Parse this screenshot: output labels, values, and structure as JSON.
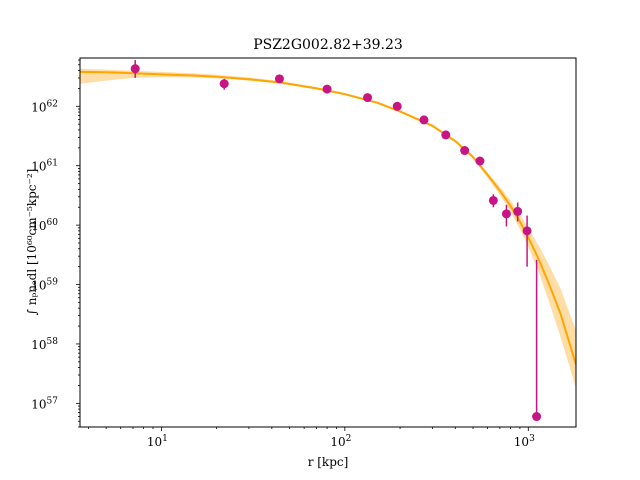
{
  "chart_data": {
    "type": "scatter",
    "title": "PSZ2G002.82+39.23",
    "xlabel": "r [kpc]",
    "ylabel": "∫ nₚnₑdl [10⁶⁰cm⁻⁵kpc⁻²]",
    "xscale": "log",
    "yscale": "log",
    "xlim": [
      3.6,
      1820
    ],
    "ylim": [
      4e+56,
      6.5e+62
    ],
    "x_ticks": [
      {
        "value": 10,
        "label": "10",
        "exp": "1"
      },
      {
        "value": 100,
        "label": "10",
        "exp": "2"
      },
      {
        "value": 1000,
        "label": "10",
        "exp": "3"
      }
    ],
    "y_ticks": [
      {
        "value": 1e+57,
        "label": "10",
        "exp": "57"
      },
      {
        "value": 1e+58,
        "label": "10",
        "exp": "58"
      },
      {
        "value": 1e+59,
        "label": "10",
        "exp": "59"
      },
      {
        "value": 1e+60,
        "label": "10",
        "exp": "60"
      },
      {
        "value": 1e+61,
        "label": "10",
        "exp": "61"
      },
      {
        "value": 1e+62,
        "label": "10",
        "exp": "62"
      }
    ],
    "colors": {
      "data": "#c71585",
      "model": "#ffa500",
      "band": "#ffd28a"
    },
    "series": [
      {
        "kind": "errorbar",
        "x": [
          7.2,
          22,
          44,
          80,
          133,
          193,
          270,
          355,
          450,
          545,
          645,
          760,
          875,
          985,
          1110
        ],
        "y": [
          4.3e+62,
          2.4e+62,
          2.9e+62,
          1.95e+62,
          1.4e+62,
          1e+62,
          5.9e+61,
          3.3e+61,
          1.8e+61,
          1.2e+61,
          2.6e+60,
          1.55e+60,
          1.7e+60,
          8e+59,
          6e+56
        ],
        "yerr_low": [
          3e+62,
          1.9e+62,
          2.6e+62,
          1.8e+62,
          1.3e+62,
          9.3e+61,
          5.5e+61,
          3.1e+61,
          1.7e+61,
          1.13e+61,
          2e+60,
          9.5e+59,
          1.15e+60,
          2e+59,
          6e+56
        ],
        "yerr_high": [
          6e+62,
          2.9e+62,
          3.2e+62,
          2.1e+62,
          1.5e+62,
          1.08e+62,
          6.3e+61,
          3.5e+61,
          1.9e+61,
          1.27e+61,
          3.3e+60,
          2.2e+60,
          2.4e+60,
          1.45e+60,
          2.6e+59
        ]
      },
      {
        "kind": "model",
        "x": [
          3.6,
          5,
          7,
          10,
          15,
          20,
          30,
          45,
          70,
          100,
          150,
          200,
          300,
          400,
          500,
          600,
          700,
          800,
          900,
          1000,
          1150,
          1300,
          1500,
          1820
        ],
        "y": [
          3.8e+62,
          3.75e+62,
          3.6e+62,
          3.45e+62,
          3.3e+62,
          3.15e+62,
          2.85e+62,
          2.5e+62,
          2e+62,
          1.6e+62,
          1.15e+62,
          8.2e+61,
          4.7e+61,
          2.6e+61,
          1.4e+61,
          7e+60,
          3.8e+60,
          2.1e+60,
          1.15e+60,
          6.2e+59,
          2.5e+59,
          1e+59,
          3.2e+58,
          4.5e+57
        ],
        "band_low": [
          2.4e+62,
          2.7e+62,
          3e+62,
          3.1e+62,
          3.05e+62,
          2.95e+62,
          2.7e+62,
          2.4e+62,
          1.93e+62,
          1.55e+62,
          1.1e+62,
          7.8e+61,
          4.5e+61,
          2.45e+61,
          1.3e+61,
          6.3e+60,
          3.2e+60,
          1.7e+60,
          8.5e+59,
          4.3e+59,
          1.5e+59,
          5e+58,
          1.3e+58,
          1.8e+57
        ],
        "band_high": [
          4.3e+62,
          4.15e+62,
          3.95e+62,
          3.8e+62,
          3.6e+62,
          3.4e+62,
          3.05e+62,
          2.65e+62,
          2.1e+62,
          1.68e+62,
          1.2e+62,
          8.6e+61,
          4.9e+61,
          2.75e+61,
          1.5e+61,
          7.7e+60,
          4.4e+60,
          2.6e+60,
          1.5e+60,
          8.8e+59,
          4.3e+59,
          2.1e+59,
          8.5e+58,
          1.7e+58
        ]
      }
    ]
  }
}
